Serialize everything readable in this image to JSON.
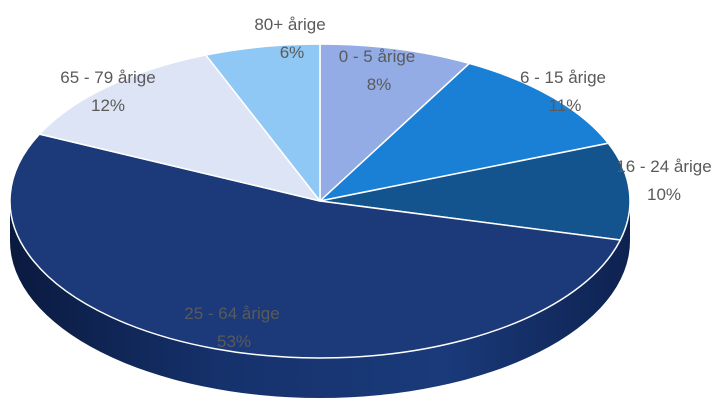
{
  "chart_data": {
    "type": "pie",
    "title": "",
    "slices": [
      {
        "label": "0 - 5 årige",
        "pct_label": "8%",
        "value": 8,
        "color": "#93ace6"
      },
      {
        "label": "6 - 15 årige",
        "pct_label": "11%",
        "value": 11,
        "color": "#1a80d6"
      },
      {
        "label": "16 - 24 årige",
        "pct_label": "10%",
        "value": 10,
        "color": "#14548e"
      },
      {
        "label": "25 - 64 årige",
        "pct_label": "53%",
        "value": 53,
        "color": "#1c3a79"
      },
      {
        "label": "65 - 79 årige",
        "pct_label": "12%",
        "value": 12,
        "color": "#dde4f5"
      },
      {
        "label": "80+ årige",
        "pct_label": "6%",
        "value": 6,
        "color": "#90c8f5"
      }
    ],
    "legend": "none"
  }
}
